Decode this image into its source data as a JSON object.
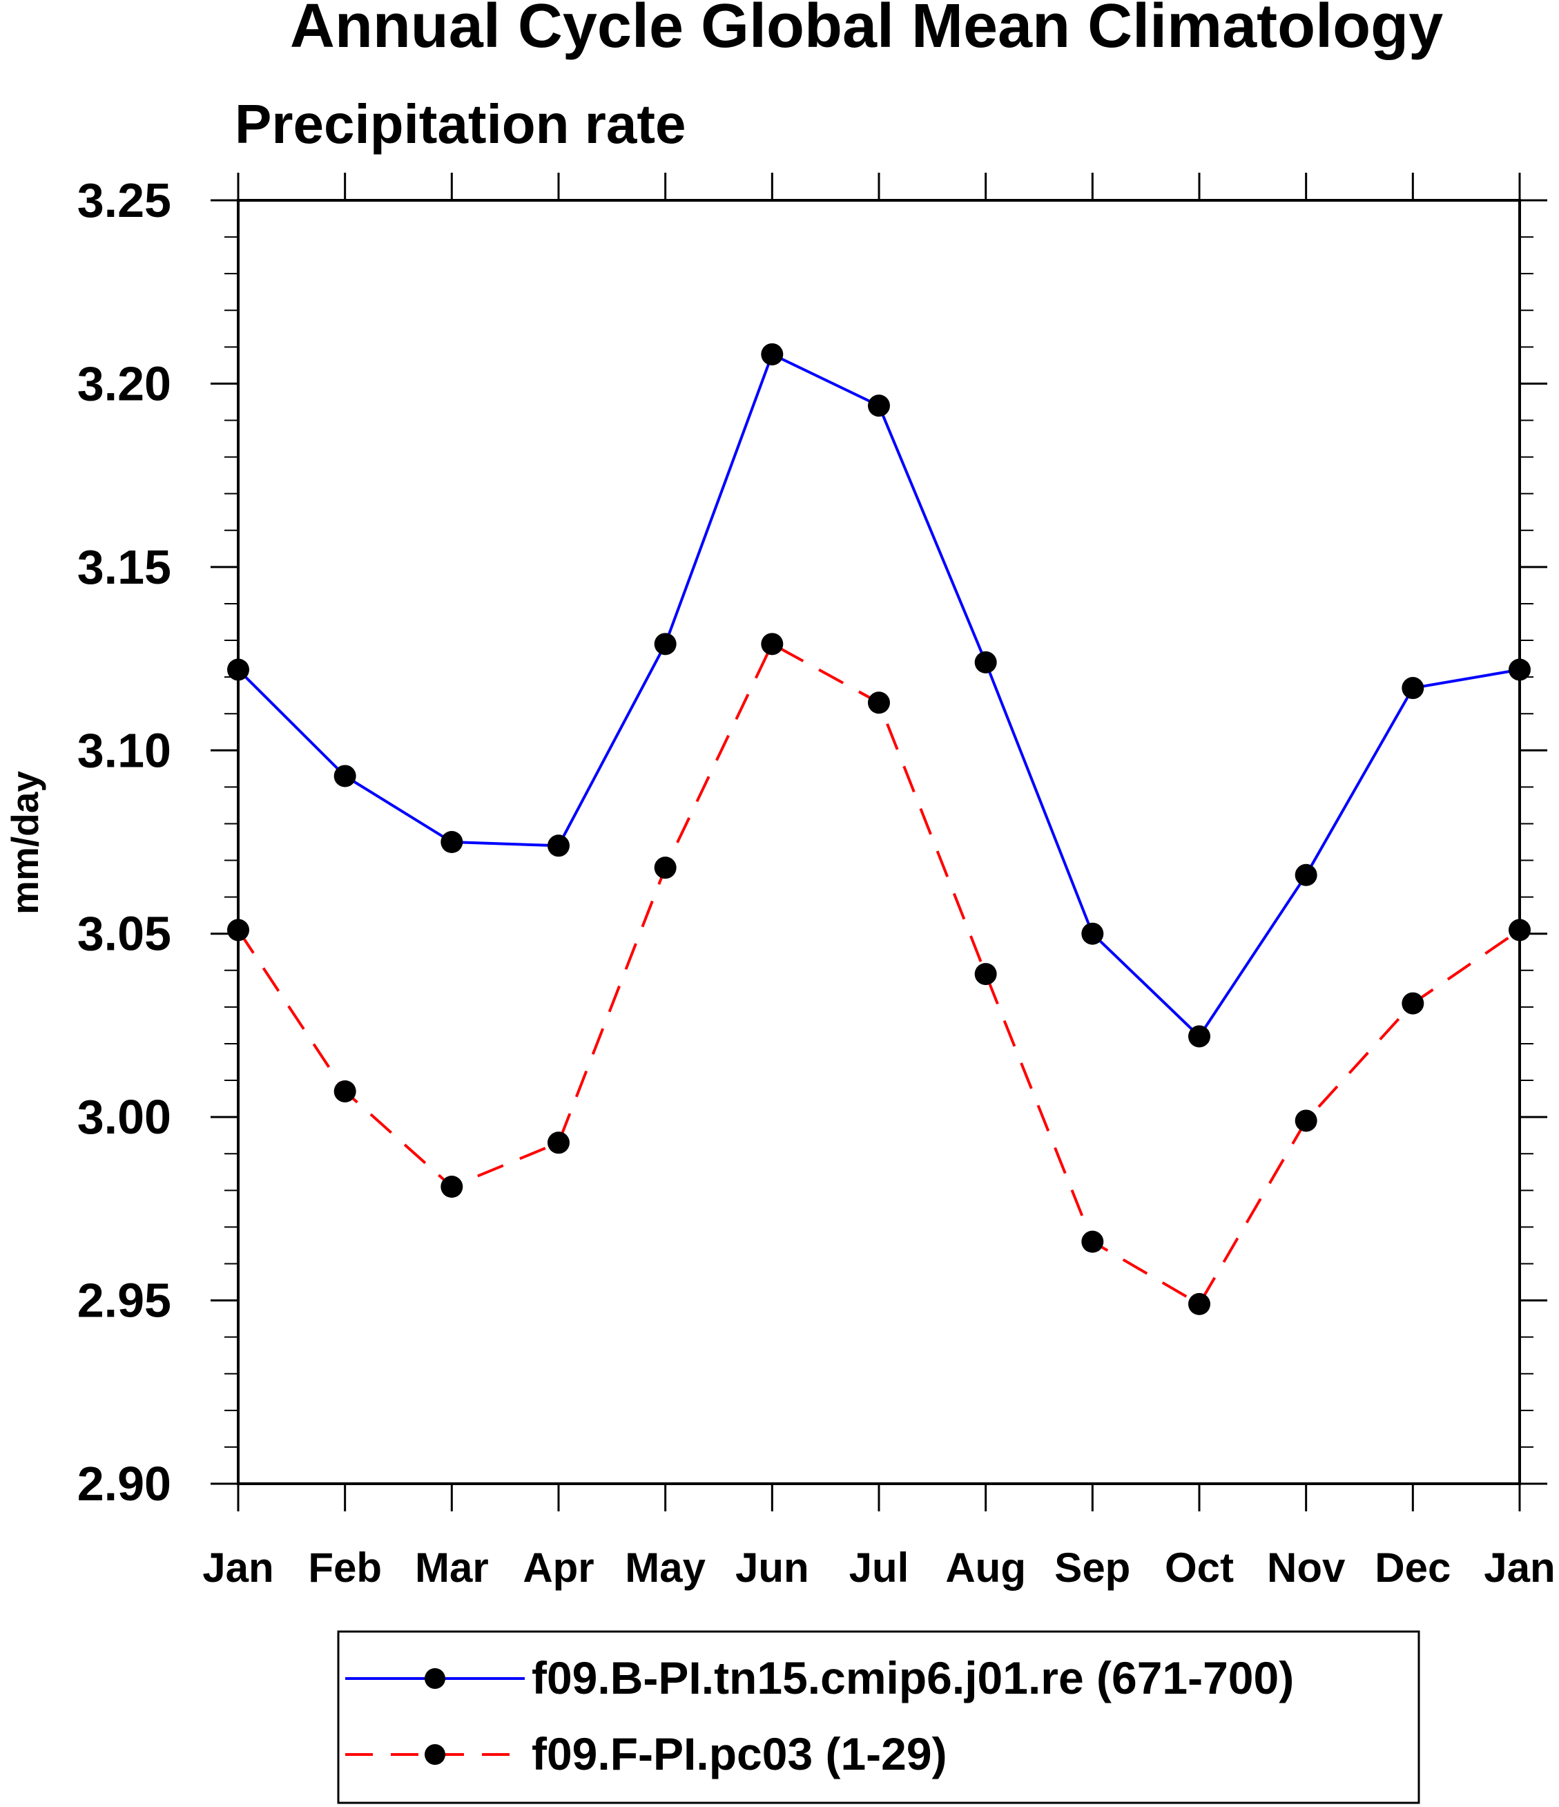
{
  "chart_data": {
    "type": "line",
    "title": "Annual Cycle Global Mean Climatology",
    "subtitle": "Precipitation rate",
    "xlabel": "",
    "ylabel": "mm/day",
    "categories": [
      "Jan",
      "Feb",
      "Mar",
      "Apr",
      "May",
      "Jun",
      "Jul",
      "Aug",
      "Sep",
      "Oct",
      "Nov",
      "Dec",
      "Jan"
    ],
    "ylim": [
      2.9,
      3.25
    ],
    "yticks": [
      "2.90",
      "2.95",
      "3.00",
      "3.05",
      "3.10",
      "3.15",
      "3.20",
      "3.25"
    ],
    "grid": false,
    "legend_position": "bottom",
    "series": [
      {
        "name": "f09.B-PI.tn15.cmip6.j01.re (671-700)",
        "color": "#0000ff",
        "line_style": "solid",
        "marker": "filled-circle",
        "values": [
          3.122,
          3.093,
          3.075,
          3.074,
          3.129,
          3.208,
          3.194,
          3.124,
          3.05,
          3.022,
          3.066,
          3.117,
          3.122
        ]
      },
      {
        "name": "f09.F-PI.pc03 (1-29)",
        "color": "#ff0000",
        "line_style": "dashed",
        "marker": "filled-circle",
        "values": [
          3.051,
          3.007,
          2.981,
          2.993,
          3.068,
          3.129,
          3.113,
          3.039,
          2.966,
          2.949,
          2.999,
          3.031,
          3.051
        ]
      }
    ]
  }
}
